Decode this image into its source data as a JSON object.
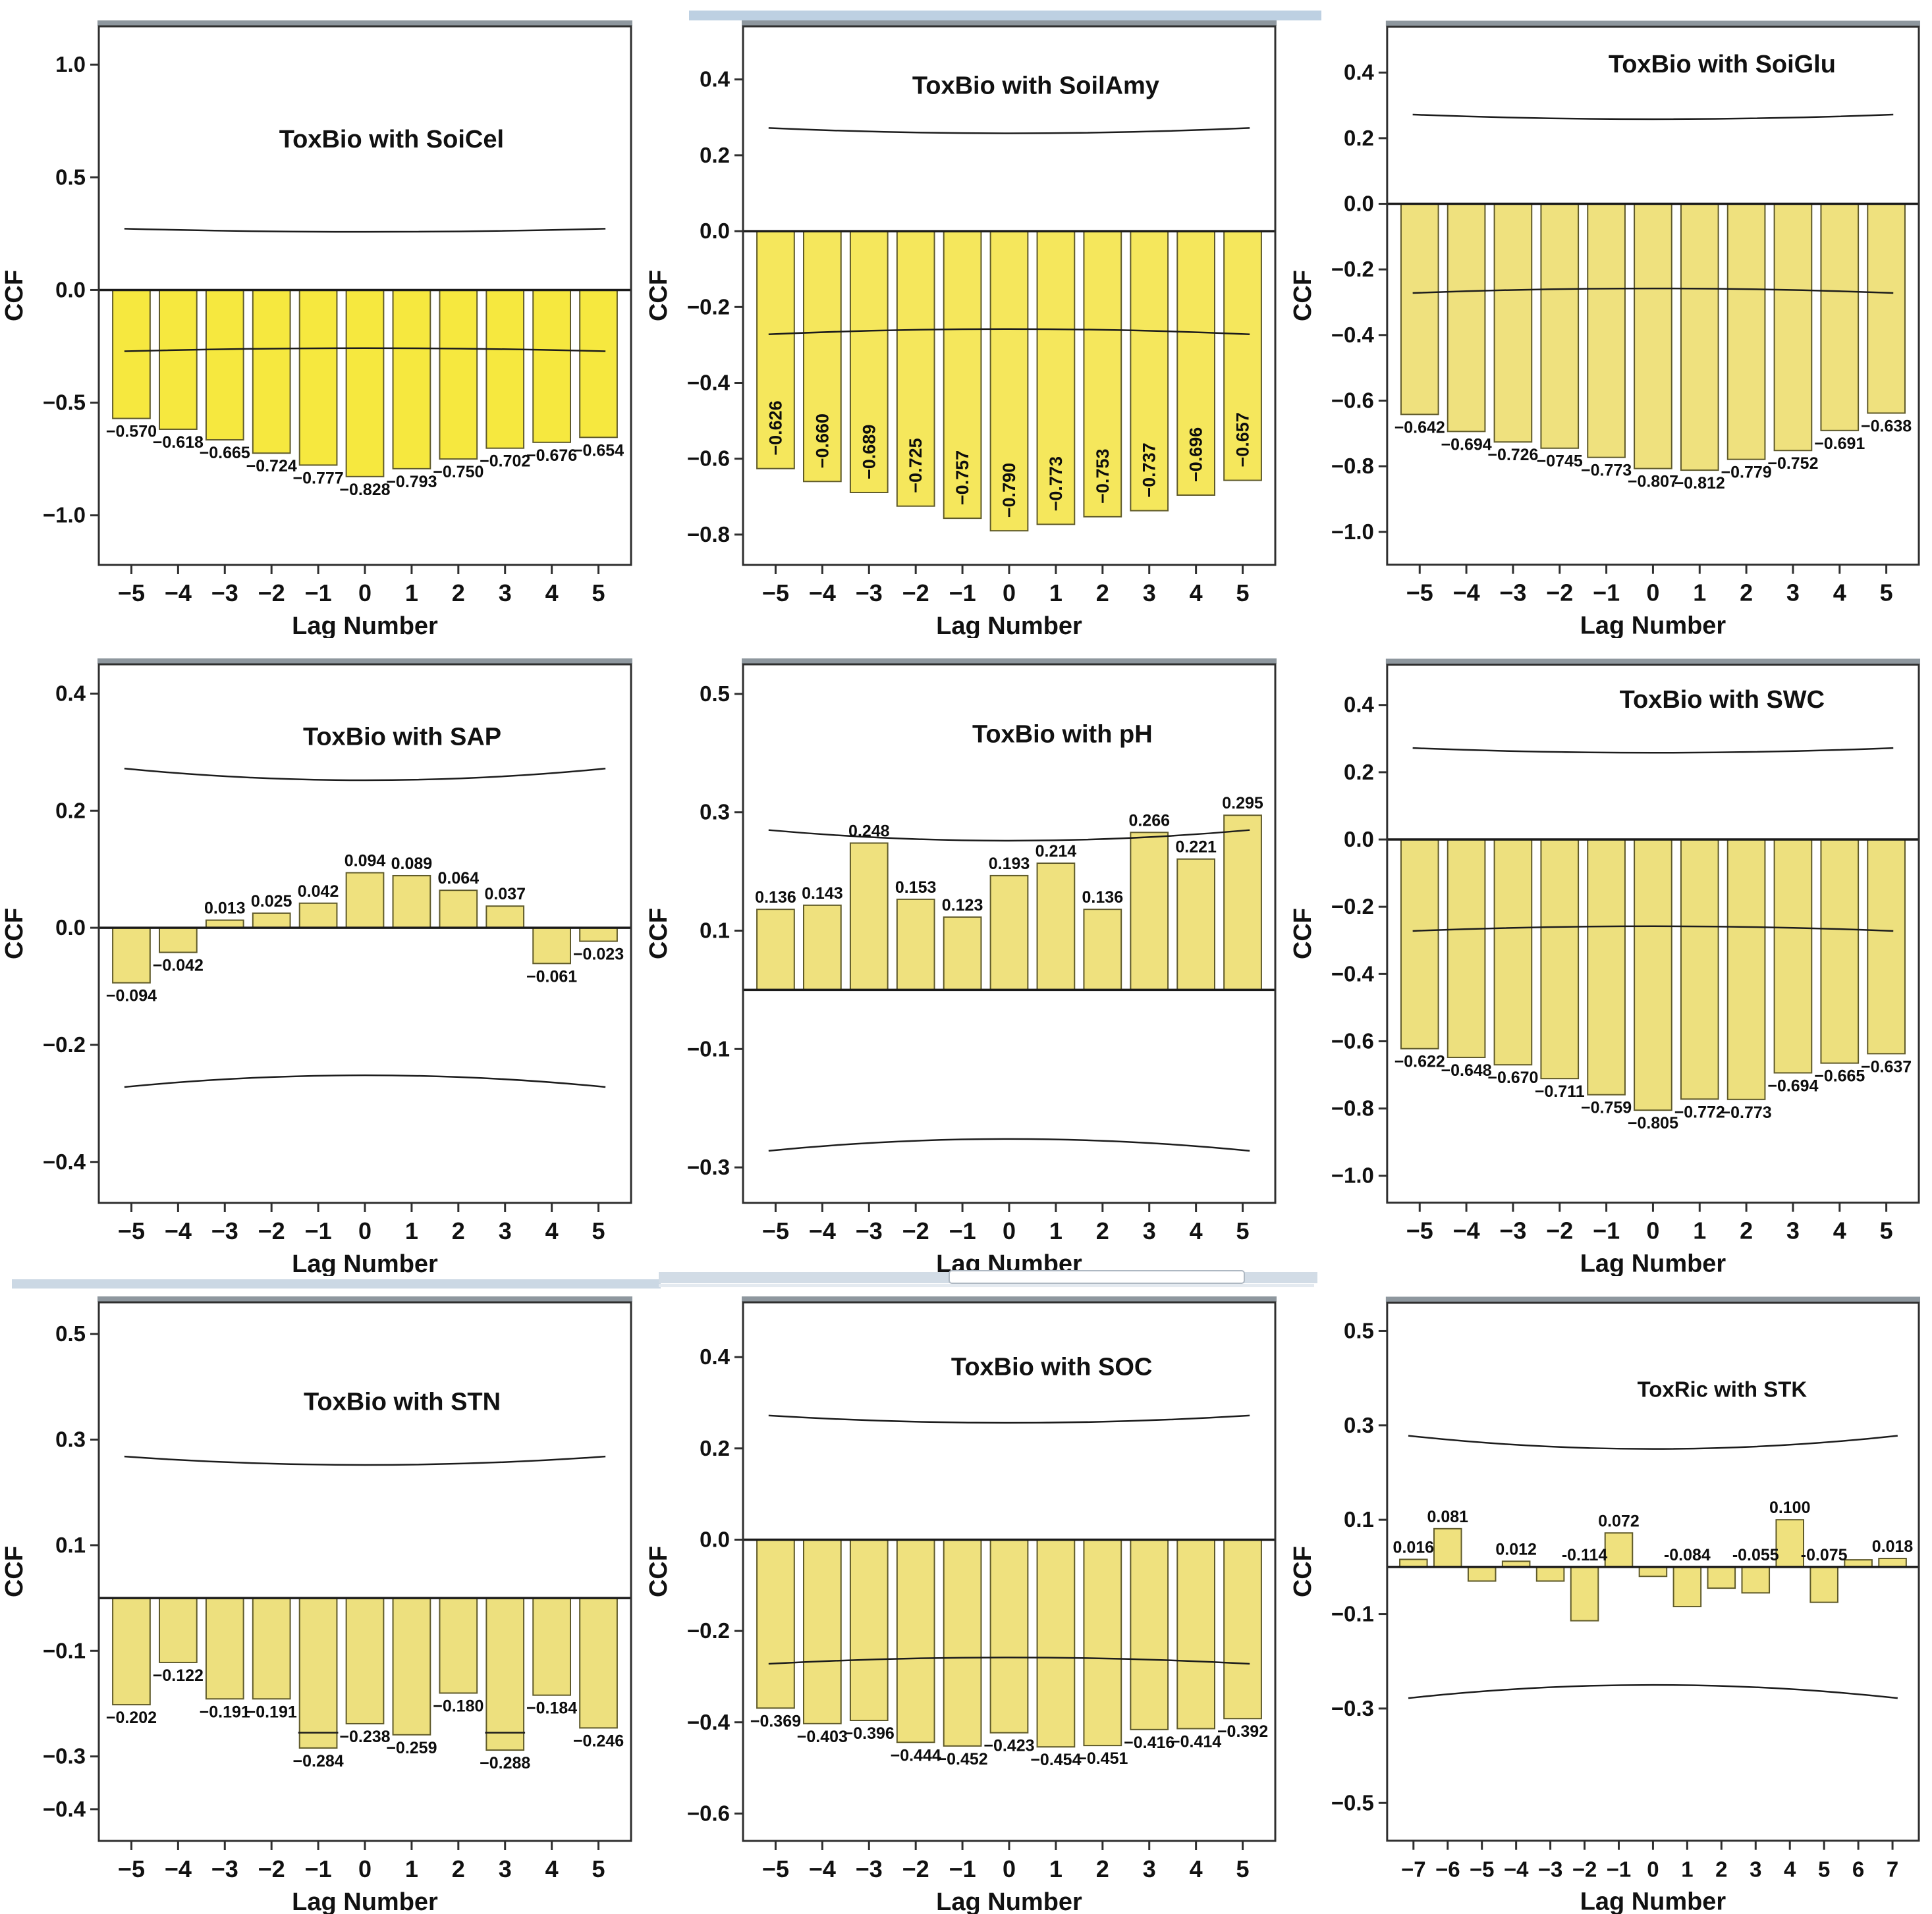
{
  "figure": {
    "ylabel": "CCF",
    "xlabel": "Lag Number",
    "colors": {
      "bar_fill_bright": "#F6E83F",
      "bar_fill_soft": "#EFE17E",
      "bar_edge": "#5F5A2A",
      "frame": "#2F2F2F",
      "band_line": "#1C1C1C",
      "zero_line": "#1A1A1A",
      "label_text": "#0D0D0D",
      "panel_top_edge": "#8E979E",
      "artifact_blue": "#C9D6E4"
    }
  },
  "chart_data": [
    {
      "type": "bar",
      "title": "ToxBio with SoiCel",
      "xlabel": "Lag Number",
      "ylabel": "CCF",
      "x": [
        -5,
        -4,
        -3,
        -2,
        -1,
        0,
        1,
        2,
        3,
        4,
        5
      ],
      "x_tick_labels": [
        "−5",
        "−4",
        "−3",
        "−2",
        "−1",
        "0",
        "1",
        "2",
        "3",
        "4",
        "5"
      ],
      "values": [
        -0.57,
        -0.618,
        -0.665,
        -0.724,
        -0.777,
        -0.828,
        -0.793,
        -0.75,
        -0.702,
        -0.676,
        -0.654
      ],
      "bar_labels": [
        "−0.570",
        "−0.618",
        "−0.665",
        "−0.724",
        "−0.777",
        "−0.828",
        "−0.793",
        "−0.750",
        "−0.702",
        "−0.676",
        "−0.654"
      ],
      "label_position": "below",
      "y_ticks": [
        1.0,
        0.5,
        0.0,
        -0.5,
        -1.0
      ],
      "y_tick_labels": [
        "1.0",
        "0.5",
        "0.0",
        "−0.5",
        "−1.0"
      ],
      "ylim": [
        -1.22,
        1.17
      ],
      "conf_upper": [
        0.272,
        0.258
      ],
      "conf_lower": [
        -0.272,
        -0.258
      ],
      "lower_band_segments_only": false,
      "bar_fill": "#F6E83F",
      "grid": false,
      "legend": null
    },
    {
      "type": "bar",
      "title": "ToxBio with SoilAmy",
      "xlabel": "Lag Number",
      "ylabel": "CCF",
      "x": [
        -5,
        -4,
        -3,
        -2,
        -1,
        0,
        1,
        2,
        3,
        4,
        5
      ],
      "x_tick_labels": [
        "−5",
        "−4",
        "−3",
        "−2",
        "−1",
        "0",
        "1",
        "2",
        "3",
        "4",
        "5"
      ],
      "values": [
        -0.626,
        -0.66,
        -0.689,
        -0.725,
        -0.757,
        -0.79,
        -0.773,
        -0.753,
        -0.737,
        -0.696,
        -0.657
      ],
      "bar_labels": [
        "−0.626",
        "−0.660",
        "−0.689",
        "−0.725",
        "−0.757",
        "−0.790",
        "−0.773",
        "−0.753",
        "−0.737",
        "−0.696",
        "−0.657"
      ],
      "label_position": "inside-rotated",
      "y_ticks": [
        0.4,
        0.2,
        0.0,
        -0.2,
        -0.4,
        -0.6,
        -0.8
      ],
      "y_tick_labels": [
        "0.4",
        "0.2",
        "0.0",
        "−0.2",
        "−0.4",
        "−0.6",
        "−0.8"
      ],
      "ylim": [
        -0.88,
        0.54
      ],
      "conf_upper": [
        0.272,
        0.258
      ],
      "conf_lower": [
        -0.272,
        -0.258
      ],
      "lower_band_segments_only": false,
      "bar_fill": "#F5E75C",
      "grid": false,
      "legend": null
    },
    {
      "type": "bar",
      "title": "ToxBio with SoiGlu",
      "xlabel": "Lag Number",
      "ylabel": "CCF",
      "x": [
        -5,
        -4,
        -3,
        -2,
        -1,
        0,
        1,
        2,
        3,
        4,
        5
      ],
      "x_tick_labels": [
        "−5",
        "−4",
        "−3",
        "−2",
        "−1",
        "0",
        "1",
        "2",
        "3",
        "4",
        "5"
      ],
      "values": [
        -0.642,
        -0.694,
        -0.726,
        -0.745,
        -0.773,
        -0.807,
        -0.812,
        -0.779,
        -0.752,
        -0.691,
        -0.638
      ],
      "bar_labels": [
        "−0.642",
        "−0.694",
        "−0.726",
        "−0745",
        "−0.773",
        "−0.807",
        "−0.812",
        "−0.779",
        "−0.752",
        "−0.691",
        "−0.638"
      ],
      "label_position": "below",
      "y_ticks": [
        0.4,
        0.2,
        0.0,
        -0.2,
        -0.4,
        -0.6,
        -0.8,
        -1.0
      ],
      "y_tick_labels": [
        "0.4",
        "0.2",
        "0.0",
        "−0.2",
        "−0.4",
        "−0.6",
        "−0.8",
        "−1.0"
      ],
      "ylim": [
        -1.1,
        0.54
      ],
      "conf_upper": [
        0.272,
        0.258
      ],
      "conf_lower": [
        -0.272,
        -0.258
      ],
      "lower_band_segments_only": false,
      "bar_fill": "#EFE17E",
      "grid": false,
      "legend": null
    },
    {
      "type": "bar",
      "title": "ToxBio with SAP",
      "xlabel": "Lag Number",
      "ylabel": "CCF",
      "x": [
        -5,
        -4,
        -3,
        -2,
        -1,
        0,
        1,
        2,
        3,
        4,
        5
      ],
      "x_tick_labels": [
        "−5",
        "−4",
        "−3",
        "−2",
        "−1",
        "0",
        "1",
        "2",
        "3",
        "4",
        "5"
      ],
      "values": [
        -0.094,
        -0.042,
        0.013,
        0.025,
        0.042,
        0.094,
        0.089,
        0.064,
        0.037,
        -0.061,
        -0.023
      ],
      "bar_labels": [
        "−0.094",
        "−0.042",
        "0.013",
        "0.025",
        "0.042",
        "0.094",
        "0.089",
        "0.064",
        "0.037",
        "−0.061",
        "−0.023"
      ],
      "label_position": "by-sign",
      "y_ticks": [
        0.4,
        0.2,
        0.0,
        -0.2,
        -0.4
      ],
      "y_tick_labels": [
        "0.4",
        "0.2",
        "0.0",
        "−0.2",
        "−0.4"
      ],
      "ylim": [
        -0.47,
        0.45
      ],
      "conf_upper": [
        0.272,
        0.252
      ],
      "conf_lower": [
        -0.272,
        -0.252
      ],
      "lower_band_segments_only": false,
      "bar_fill": "#EFE17E",
      "grid": false,
      "legend": null
    },
    {
      "type": "bar",
      "title": "ToxBio with pH",
      "xlabel": "Lag Number",
      "ylabel": "CCF",
      "x": [
        -5,
        -4,
        -3,
        -2,
        -1,
        0,
        1,
        2,
        3,
        4,
        5
      ],
      "x_tick_labels": [
        "−5",
        "−4",
        "−3",
        "−2",
        "−1",
        "0",
        "1",
        "2",
        "3",
        "4",
        "5"
      ],
      "values": [
        0.136,
        0.143,
        0.248,
        0.153,
        0.123,
        0.193,
        0.214,
        0.136,
        0.266,
        0.221,
        0.295
      ],
      "bar_labels": [
        "0.136",
        "0.143",
        "0.248",
        "0.153",
        "0.123",
        "0.193",
        "0.214",
        "0.136",
        "0.266",
        "0.221",
        "0.295"
      ],
      "label_position": "above",
      "y_ticks": [
        0.5,
        0.3,
        0.1,
        -0.1,
        -0.3
      ],
      "y_tick_labels": [
        "0.5",
        "0.3",
        "0.1",
        "−0.1",
        "−0.3"
      ],
      "ylim": [
        -0.36,
        0.55
      ],
      "conf_upper": [
        0.27,
        0.252
      ],
      "conf_lower": [
        -0.272,
        -0.252
      ],
      "lower_band_segments_only": false,
      "bar_fill": "#EFE17E",
      "grid": false,
      "legend": null
    },
    {
      "type": "bar",
      "title": "ToxBio with SWC",
      "xlabel": "Lag Number",
      "ylabel": "CCF",
      "x": [
        -5,
        -4,
        -3,
        -2,
        -1,
        0,
        1,
        2,
        3,
        4,
        5
      ],
      "x_tick_labels": [
        "−5",
        "−4",
        "−3",
        "−2",
        "−1",
        "0",
        "1",
        "2",
        "3",
        "4",
        "5"
      ],
      "values": [
        -0.622,
        -0.648,
        -0.67,
        -0.711,
        -0.759,
        -0.805,
        -0.772,
        -0.773,
        -0.694,
        -0.665,
        -0.637
      ],
      "bar_labels": [
        "−0.622",
        "−0.648",
        "−0.670",
        "−0.711",
        "−0.759",
        "−0.805",
        "−0.772",
        "−0.773",
        "−0.694",
        "−0.665",
        "−0.637"
      ],
      "label_position": "below",
      "y_ticks": [
        0.4,
        0.2,
        0.0,
        -0.2,
        -0.4,
        -0.6,
        -0.8,
        -1.0
      ],
      "y_tick_labels": [
        "0.4",
        "0.2",
        "0.0",
        "−0.2",
        "−0.4",
        "−0.6",
        "−0.8",
        "−1.0"
      ],
      "ylim": [
        -1.08,
        0.52
      ],
      "conf_upper": [
        0.272,
        0.258
      ],
      "conf_lower": [
        -0.272,
        -0.258
      ],
      "lower_band_segments_only": false,
      "bar_fill": "#EDE07E",
      "grid": false,
      "legend": null
    },
    {
      "type": "bar",
      "title": "ToxBio with STN",
      "xlabel": "Lag Number",
      "ylabel": "CCF",
      "x": [
        -5,
        -4,
        -3,
        -2,
        -1,
        0,
        1,
        2,
        3,
        4,
        5
      ],
      "x_tick_labels": [
        "−5",
        "−4",
        "−3",
        "−2",
        "−1",
        "0",
        "1",
        "2",
        "3",
        "4",
        "5"
      ],
      "values": [
        -0.202,
        -0.122,
        -0.191,
        -0.191,
        -0.284,
        -0.238,
        -0.259,
        -0.18,
        -0.288,
        -0.184,
        -0.246
      ],
      "bar_labels": [
        "−0.202",
        "−0.122",
        "−0.191",
        "−0.191",
        "−0.284",
        "−0.238",
        "−0.259",
        "−0.180",
        "−0.288",
        "−0.184",
        "−0.246"
      ],
      "label_position": "below",
      "y_ticks": [
        0.5,
        0.3,
        0.1,
        -0.1,
        -0.3,
        -0.4
      ],
      "y_tick_labels": [
        "0.5",
        "0.3",
        "0.1",
        "−0.1",
        "−0.3",
        "−0.4"
      ],
      "ylim": [
        -0.46,
        0.56
      ],
      "conf_upper": [
        0.268,
        0.252
      ],
      "conf_lower": [
        -0.268,
        -0.255
      ],
      "lower_band_segments_only": true,
      "bar_fill": "#EDE07E",
      "grid": false,
      "legend": null
    },
    {
      "type": "bar",
      "title": "ToxBio with SOC",
      "xlabel": "Lag Number",
      "ylabel": "CCF",
      "x": [
        -5,
        -4,
        -3,
        -2,
        -1,
        0,
        1,
        2,
        3,
        4,
        5
      ],
      "x_tick_labels": [
        "−5",
        "−4",
        "−3",
        "−2",
        "−1",
        "0",
        "1",
        "2",
        "3",
        "4",
        "5"
      ],
      "values": [
        -0.369,
        -0.403,
        -0.396,
        -0.444,
        -0.452,
        -0.423,
        -0.454,
        -0.451,
        -0.416,
        -0.414,
        -0.392
      ],
      "bar_labels": [
        "−0.369",
        "−0.403",
        "−0.396",
        "−0.444",
        "−0.452",
        "−0.423",
        "−0.454",
        "−0.451",
        "−0.416",
        "−0.414",
        "−0.392"
      ],
      "label_position": "below",
      "y_ticks": [
        0.4,
        0.2,
        0.0,
        -0.2,
        -0.4,
        -0.6
      ],
      "y_tick_labels": [
        "0.4",
        "0.2",
        "0.0",
        "−0.2",
        "−0.4",
        "−0.6"
      ],
      "ylim": [
        -0.66,
        0.52
      ],
      "conf_upper": [
        0.272,
        0.256
      ],
      "conf_lower": [
        -0.272,
        -0.258
      ],
      "lower_band_segments_only": false,
      "bar_fill": "#EFE17E",
      "grid": false,
      "legend": null
    },
    {
      "type": "bar",
      "title": "ToxRic with STK",
      "xlabel": "Lag Number",
      "ylabel": "CCF",
      "x": [
        -7,
        -6,
        -5,
        -4,
        -3,
        -2,
        -1,
        0,
        1,
        2,
        3,
        4,
        5,
        6,
        7
      ],
      "x_tick_labels": [
        "−7",
        "−6",
        "−5",
        "−4",
        "−3",
        "−2",
        "−1",
        "0",
        "1",
        "2",
        "3",
        "4",
        "5",
        "6",
        "7"
      ],
      "values": [
        0.016,
        0.081,
        -0.03,
        0.012,
        -0.03,
        -0.114,
        0.072,
        -0.02,
        -0.084,
        -0.045,
        -0.055,
        0.1,
        -0.075,
        0.015,
        0.018
      ],
      "bar_labels": [
        "0.016",
        "0.081",
        null,
        "0.012",
        null,
        "-0.114",
        "0.072",
        null,
        "-0.084",
        null,
        "-0.055",
        "0.100",
        "-0.075",
        null,
        "0.018"
      ],
      "label_position": "stk",
      "y_ticks": [
        0.5,
        0.3,
        0.1,
        -0.1,
        -0.3,
        -0.5
      ],
      "y_tick_labels": [
        "0.5",
        "0.3",
        "0.1",
        "−0.1",
        "−0.3",
        "−0.5"
      ],
      "ylim": [
        -0.58,
        0.56
      ],
      "conf_upper": [
        0.278,
        0.25
      ],
      "conf_lower": [
        -0.278,
        -0.25
      ],
      "lower_band_segments_only": false,
      "bar_fill": "#EFE17E",
      "grid": false,
      "legend": null
    }
  ]
}
